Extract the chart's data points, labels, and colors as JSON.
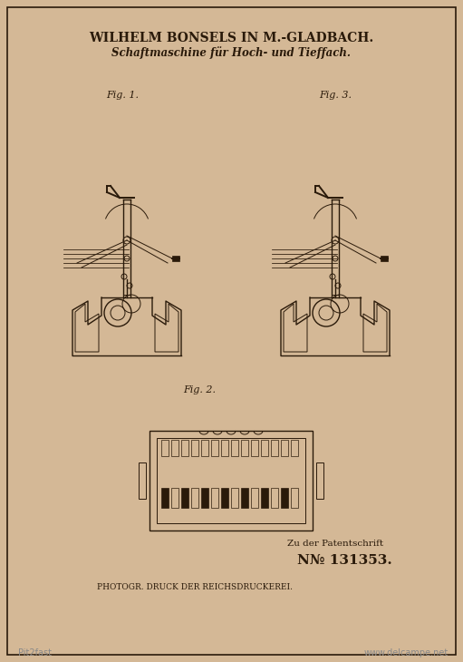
{
  "bg_color": "#d4b896",
  "border_color": "#3a2a1a",
  "ink_color": "#2a1a0a",
  "title_line1": "WILHELM BONSELS IN M.-GLADBACH.",
  "title_line2": "Schaftmaschine für Hoch- und Tieffach.",
  "fig1_label": "Fig. 1.",
  "fig2_label": "Fig. 2.",
  "fig3_label": "Fig. 3.",
  "bottom_text": "PHOTOGR. DRUCK DER REICHSDRUCKEREI.",
  "patent_label": "Zu der Patentschrift",
  "patent_number": "N№ 131353.",
  "watermark1": "Pit2fast",
  "watermark2": "www.delcampe.net",
  "paper_color": "#c8a87a",
  "line_color": "#1a0f05"
}
